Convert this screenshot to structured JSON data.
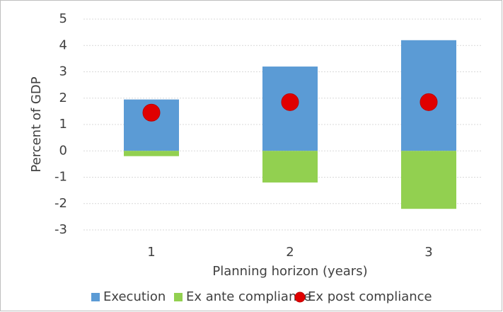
{
  "chart_data": {
    "type": "bar",
    "x_label": "Planning horizon (years)",
    "y_label": "Percent of GDP",
    "categories": [
      "1",
      "2",
      "3"
    ],
    "series": [
      {
        "name": "Execution",
        "color": "#5b9bd5",
        "values": [
          1.95,
          3.2,
          4.2
        ]
      },
      {
        "name": "Ex ante compliance",
        "color": "#92d050",
        "values": [
          -0.2,
          -1.2,
          -2.2
        ]
      },
      {
        "name": "Ex post compliance",
        "color": "#e00000",
        "type": "scatter",
        "values": [
          1.45,
          1.85,
          1.85
        ]
      }
    ],
    "ylim": [
      -3,
      5
    ],
    "yticks": [
      -3,
      -2,
      -1,
      0,
      1,
      2,
      3,
      4,
      5
    ],
    "grid": true
  }
}
